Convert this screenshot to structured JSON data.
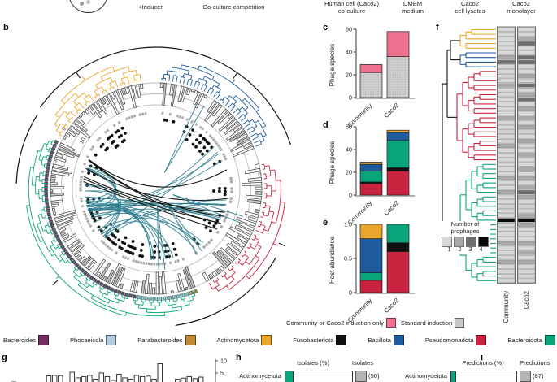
{
  "panel_labels": {
    "b": "b",
    "c": "c",
    "d": "d",
    "e": "e",
    "f": "f",
    "g": "g",
    "h": "h",
    "i": "i"
  },
  "top": {
    "inducer": "+Inducer",
    "coculture": "Co-culture competition",
    "col1": [
      "Human cell (Caco2)",
      "co-culture"
    ],
    "col2": [
      "DMEM",
      "medium"
    ],
    "col3": [
      "Caco2",
      "cell lysates"
    ],
    "col4": [
      "Caco2",
      "monolayer"
    ]
  },
  "colors": {
    "yellow": "#eaa62a",
    "blue": "#1f5c9e",
    "red": "#c9243f",
    "green": "#0aa47b",
    "teal": "#2d7d8e",
    "purple": "#733061",
    "lightblue": "#b6cbdf",
    "tan": "#bf8a33",
    "pink": "#ee6f8e",
    "gray": "#cccccc",
    "black": "#111111",
    "shade1": "#d8d8d8",
    "shade2": "#a9a9a9",
    "shade3": "#6e6e6e",
    "shade4": "#0a0a0a"
  },
  "tree": {
    "axis_ticks": [
      "0",
      "5",
      "10"
    ],
    "clades": [
      {
        "name": "Actinomycetota",
        "color": "yellow",
        "a0": -152,
        "a1": -97,
        "n": 26
      },
      {
        "name": "Bacillota",
        "color": "blue",
        "a0": -88,
        "a1": -22,
        "n": 34
      },
      {
        "name": "Pseudomonadota",
        "color": "red",
        "a0": -14,
        "a1": 62,
        "n": 30
      },
      {
        "name": "Bacteroidota",
        "color": "green",
        "a0": 68,
        "a1": 206,
        "n": 68,
        "markers": true
      }
    ],
    "marker_rules": [
      {
        "max": 73,
        "color": "tan"
      },
      {
        "max": 100,
        "color": "lightblue"
      },
      {
        "max": 999,
        "color": "purple"
      }
    ],
    "root_arcs": [
      [
        174,
        -145,
        -18
      ],
      [
        170,
        30,
        82
      ],
      [
        172,
        -178,
        -148
      ]
    ],
    "spikes": [
      [
        -62,
        118
      ],
      [
        20,
        112
      ],
      [
        56,
        96
      ],
      [
        86,
        100
      ]
    ]
  },
  "chart_data": [
    {
      "id": "c",
      "type": "bar",
      "stacked": true,
      "ylabel": "Phage species",
      "ymax": 60,
      "yticks": [
        "0",
        "20",
        "40",
        "60"
      ],
      "categories": [
        "Community",
        "Caco2"
      ],
      "series": [
        {
          "name": "Standard induction",
          "color": "#cccccc",
          "values": [
            22,
            36
          ]
        },
        {
          "name": "Community or Caco2 induction only",
          "color": "#ee6f8e",
          "values": [
            7,
            22
          ]
        }
      ]
    },
    {
      "id": "d",
      "type": "bar",
      "stacked": true,
      "ylabel": "Phage species",
      "ymax": 60,
      "yticks": [
        "0",
        "20",
        "40",
        "60"
      ],
      "categories": [
        "Community",
        "Caco2"
      ],
      "series": [
        {
          "name": "Pseudomonadota",
          "color": "#c9243f",
          "values": [
            10,
            21
          ]
        },
        {
          "name": "Fusobacteriota",
          "color": "#111111",
          "values": [
            1.5,
            3
          ]
        },
        {
          "name": "Bacteroidota",
          "color": "#0aa47b",
          "values": [
            9.5,
            24
          ]
        },
        {
          "name": "Bacillota",
          "color": "#1f5c9e",
          "values": [
            6,
            7
          ]
        },
        {
          "name": "Actinomycetota",
          "color": "#eaa62a",
          "values": [
            2,
            2
          ]
        }
      ]
    },
    {
      "id": "e",
      "type": "bar",
      "stacked": true,
      "ylabel": "Host abundance",
      "ymax": 1,
      "yticks": [
        "0",
        "0.5",
        "1.0"
      ],
      "categories": [
        "Community",
        "Caco2"
      ],
      "series": [
        {
          "name": "Pseudomonadota",
          "color": "#c9243f",
          "values": [
            0.18,
            0.6
          ]
        },
        {
          "name": "Fusobacteriota",
          "color": "#111111",
          "values": [
            0,
            0.13
          ]
        },
        {
          "name": "Bacteroidota",
          "color": "#0aa47b",
          "values": [
            0.11,
            0.27
          ]
        },
        {
          "name": "Bacillota",
          "color": "#1f5c9e",
          "values": [
            0.5,
            0
          ]
        },
        {
          "name": "Actinomycetota",
          "color": "#eaa62a",
          "values": [
            0.21,
            0
          ]
        }
      ]
    },
    {
      "id": "g",
      "type": "bar",
      "values": [
        2,
        1.5,
        0,
        1.8,
        0,
        0,
        4.5,
        4.7,
        4.6,
        0,
        6,
        3.7,
        4.2,
        4.7,
        3.2,
        5.7,
        4.2,
        2.7,
        5.2,
        3.7,
        3.2,
        4.7,
        4.2,
        4.4,
        3.2,
        9.5,
        1.7,
        0.7,
        3.2,
        3.6,
        4.2,
        3.4,
        4,
        0
      ],
      "yticks": [
        "10",
        "5"
      ]
    }
  ],
  "panel_f": {
    "heat_columns": [
      "Community",
      "Caco2"
    ],
    "groups": [
      {
        "rows": [
          0,
          4
        ],
        "color": "yellow"
      },
      {
        "rows": [
          5,
          8
        ],
        "color": "blue"
      },
      {
        "rows": [
          9,
          28
        ],
        "color": "red"
      },
      {
        "rows": [
          29,
          54
        ],
        "color": "green"
      }
    ],
    "heat_comm": [
      1,
      1,
      1,
      1,
      1,
      1,
      2,
      3,
      1,
      1,
      1,
      1,
      2,
      1,
      1,
      1,
      1,
      1,
      1,
      2,
      1,
      1,
      1,
      1,
      1,
      2,
      1,
      1,
      1,
      1,
      1,
      1,
      2,
      1,
      1,
      2,
      1,
      1,
      1,
      1,
      1,
      4,
      1,
      1,
      1,
      1,
      2,
      1,
      1,
      1,
      2,
      1,
      1,
      1,
      1
    ],
    "heat_caco": [
      1,
      1,
      2,
      3,
      1,
      1,
      3,
      3,
      1,
      1,
      2,
      1,
      3,
      1,
      2,
      3,
      1,
      2,
      1,
      2,
      1,
      2,
      1,
      1,
      2,
      1,
      1,
      2,
      1,
      1,
      2,
      1,
      2,
      1,
      2,
      3,
      2,
      1,
      1,
      1,
      2,
      4,
      2,
      1,
      1,
      1,
      2,
      1,
      2,
      1,
      2,
      1,
      1,
      1,
      1
    ],
    "prophage_legend": {
      "title": [
        "Number of",
        "prophages"
      ],
      "values": [
        "1",
        "2",
        "3",
        "4"
      ]
    }
  },
  "legend_induction": [
    {
      "label": "Community or Caco2 induction only",
      "color": "#ee6f8e"
    },
    {
      "label": "Standard induction",
      "color": "#c8c8c8"
    }
  ],
  "legend_taxa": [
    {
      "label": "Bacteroides",
      "color": "#733061"
    },
    {
      "label": "Phocaeicola",
      "color": "#b6cbdf"
    },
    {
      "label": "Parabacteroides",
      "color": "#bf8a33"
    },
    {
      "label": "Actinomycetota",
      "color": "#eaa62a"
    },
    {
      "label": "Fusobacteriota",
      "color": "#111111"
    },
    {
      "label": "Bacillota",
      "color": "#1f5c9e"
    },
    {
      "label": "Pseudomonadota",
      "color": "#c9243f"
    },
    {
      "label": "Bacteroidota",
      "color": "#0aa47b"
    }
  ],
  "panel_h": {
    "col_pct": "Isolates (%)",
    "col_n": "Isolates",
    "row_label": "Actinomycetota",
    "row_count": "(50)"
  },
  "panel_i": {
    "col_pct": "Predictions (%)",
    "col_n": "Predictions",
    "row_label": "Actinomycetota",
    "row_count": "(87)"
  }
}
